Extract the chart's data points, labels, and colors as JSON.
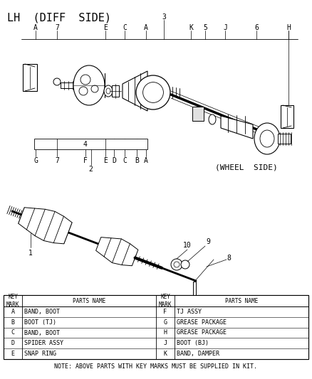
{
  "title": "LH  (DIFF  SIDE)",
  "wheel_side_label": "(WHEEL  SIDE)",
  "background_color": "#ffffff",
  "table_left": [
    [
      "A",
      "BAND, BOOT"
    ],
    [
      "B",
      "BOOT (TJ)"
    ],
    [
      "C",
      "BAND, BOOT"
    ],
    [
      "D",
      "SPIDER ASSY"
    ],
    [
      "E",
      "SNAP RING"
    ]
  ],
  "table_right": [
    [
      "F",
      "TJ ASSY"
    ],
    [
      "G",
      "GREASE PACKAGE"
    ],
    [
      "H",
      "GREASE PACKAGE"
    ],
    [
      "J",
      "BOOT (BJ)"
    ],
    [
      "K",
      "BAND, DAMPER"
    ]
  ],
  "note": "NOTE: ABOVE PARTS WITH KEY MARKS MUST BE SUPPLIED IN KIT.",
  "font_size_title": 11,
  "font_size_labels": 7,
  "font_size_note": 6
}
